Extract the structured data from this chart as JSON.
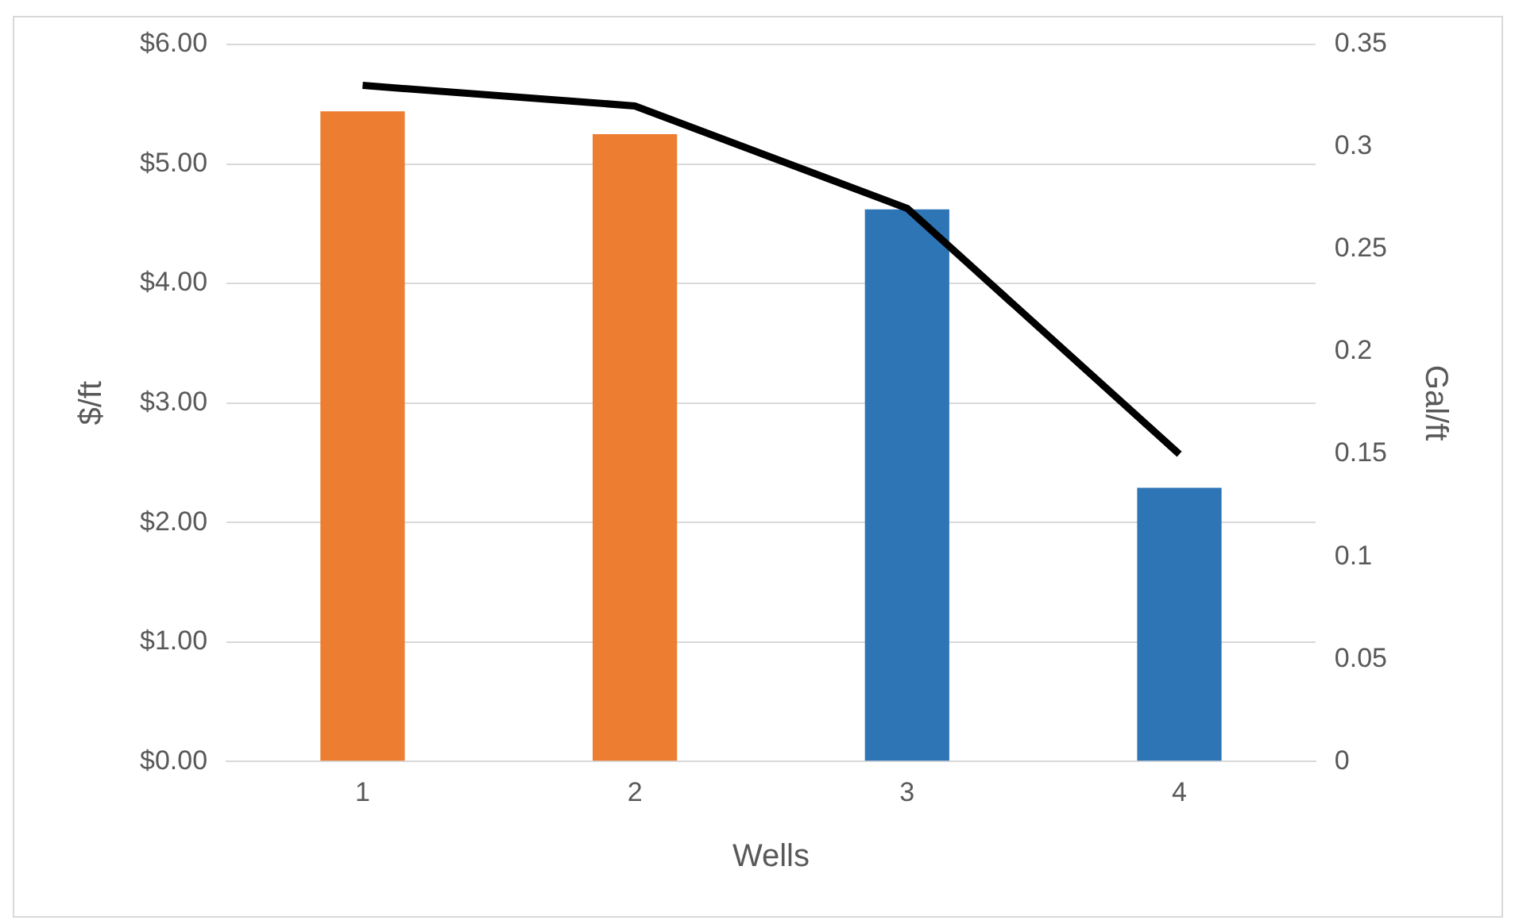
{
  "chart_data": {
    "type": "bar",
    "xlabel": "Wells",
    "ylabel": "$/ft",
    "y2label": "Gal/ft",
    "categories": [
      "1",
      "2",
      "3",
      "4"
    ],
    "series": [
      {
        "colors": [
          "#ed7d31",
          "#ed7d31",
          "#2e75b6",
          "#2e75b6"
        ],
        "values": [
          5.44,
          5.25,
          4.62,
          2.29
        ]
      },
      {
        "type": "line",
        "axis": "y2",
        "color": "#000000",
        "marker": "none",
        "line_style": "solid",
        "values": [
          0.33,
          0.32,
          0.27,
          0.15
        ]
      }
    ],
    "ylim": [
      0,
      6
    ],
    "yticks": [
      {
        "value": 0,
        "label": "$0.00"
      },
      {
        "value": 1,
        "label": "$1.00"
      },
      {
        "value": 2,
        "label": "$2.00"
      },
      {
        "value": 3,
        "label": "$3.00"
      },
      {
        "value": 4,
        "label": "$4.00"
      },
      {
        "value": 5,
        "label": "$5.00"
      },
      {
        "value": 6,
        "label": "$6.00"
      }
    ],
    "y2lim": [
      0,
      0.35
    ],
    "y2ticks": [
      0,
      0.05,
      0.1,
      0.15,
      0.2,
      0.25,
      0.3,
      0.35
    ],
    "grid": "y",
    "legend": false
  }
}
